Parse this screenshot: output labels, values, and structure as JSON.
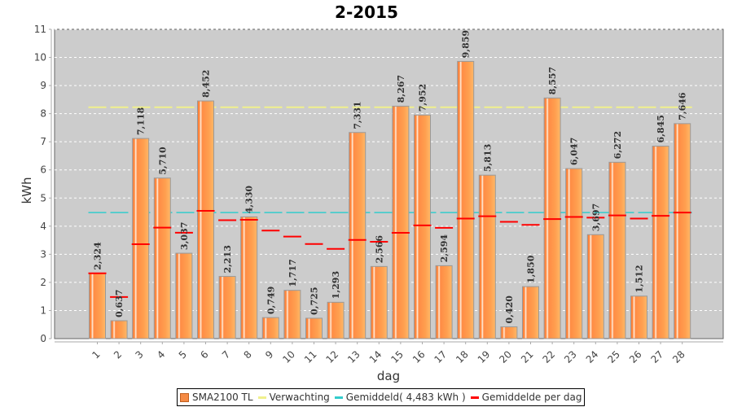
{
  "chart_data": {
    "type": "bar",
    "title": "2-2015",
    "xlabel": "dag",
    "ylabel": "kWh",
    "ylim": [
      0,
      11
    ],
    "yticks": [
      0,
      1,
      2,
      3,
      4,
      5,
      6,
      7,
      8,
      9,
      10,
      11
    ],
    "categories": [
      "1",
      "2",
      "3",
      "4",
      "5",
      "6",
      "7",
      "8",
      "9",
      "10",
      "11",
      "12",
      "13",
      "14",
      "15",
      "16",
      "17",
      "18",
      "19",
      "20",
      "21",
      "22",
      "23",
      "24",
      "25",
      "26",
      "27",
      "28"
    ],
    "series": [
      {
        "name": "SMA2100 TL",
        "type": "bar",
        "color": "#f58a44",
        "values": [
          2.324,
          0.637,
          7.118,
          5.71,
          3.037,
          8.452,
          2.213,
          4.33,
          0.749,
          1.717,
          0.725,
          1.293,
          7.331,
          2.566,
          8.267,
          7.952,
          2.594,
          9.859,
          5.813,
          0.42,
          1.85,
          8.557,
          6.047,
          3.697,
          6.272,
          1.512,
          6.845,
          7.646
        ],
        "labels": [
          "2,324",
          "0,637",
          "7,118",
          "5,710",
          "3,037",
          "8,452",
          "2,213",
          "4,330",
          "0,749",
          "1,717",
          "0,725",
          "1,293",
          "7,331",
          "2,566",
          "8,267",
          "7,952",
          "2,594",
          "9,859",
          "5,813",
          "0,420",
          "1,850",
          "8,557",
          "6,047",
          "3,697",
          "6,272",
          "1,512",
          "6,845",
          "7,646"
        ]
      },
      {
        "name": "Verwachting",
        "type": "hline",
        "color": "#f0f08c",
        "value": 8.23
      },
      {
        "name": "Gemiddeld( 4,483 kWh )",
        "type": "hline",
        "color": "#33cccc",
        "value": 4.483
      },
      {
        "name": "Gemiddelde per dag",
        "type": "step",
        "color": "#ff0000",
        "description_values": "cumulative mean of SMA2100 TL"
      }
    ],
    "legend": [
      "SMA2100 TL",
      "Verwachting",
      "Gemiddeld( 4,483 kWh )",
      "Gemiddelde per dag"
    ],
    "legend_position": "bottom",
    "grid": true,
    "colors": {
      "plot_bg": "#cccccc",
      "grid": "#ffffff",
      "bar": "#f58a44"
    }
  }
}
